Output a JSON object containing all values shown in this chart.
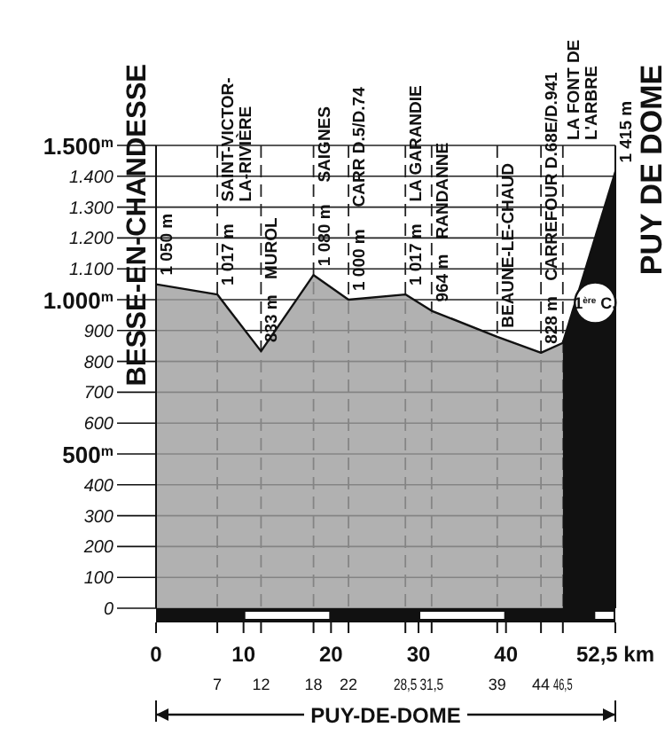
{
  "chart_data": {
    "type": "area",
    "xlabel": "PUY-DE-DOME",
    "series": [
      {
        "color": "#9e9e9e",
        "x": [
          0,
          7,
          12,
          18,
          22,
          28.5,
          31.5,
          39,
          44,
          46.5
        ],
        "values": [
          1050,
          1017,
          833,
          1080,
          1000,
          1017,
          964,
          880,
          828,
          860
        ]
      },
      {
        "color": "#111111",
        "x": [
          46.5,
          52.5
        ],
        "values": [
          860,
          1415
        ]
      }
    ],
    "xlim": [
      0,
      52.5
    ],
    "xticks": [
      0,
      10,
      20,
      30,
      40,
      {
        "value": 52.5,
        "label": "52,5 km"
      }
    ],
    "x2lim": [
      0,
      52.5
    ],
    "x2ticks": [
      7,
      12,
      18,
      22,
      {
        "value": 28.5,
        "label": "28,5"
      },
      {
        "value": 31.5,
        "label": "31,5"
      },
      39,
      44,
      {
        "value": 46.5,
        "label": "46,5"
      }
    ],
    "ylim": [
      0,
      1500
    ],
    "yticks": [
      0,
      100,
      200,
      300,
      400,
      {
        "value": 500,
        "label": "500$^{m}$"
      },
      600,
      700,
      800,
      900,
      {
        "value": 1000,
        "label": "1.000$^{m}$"
      },
      {
        "value": 1100,
        "label": "1.100"
      },
      {
        "value": 1200,
        "label": "1.200"
      },
      {
        "value": 1300,
        "label": "1.300"
      },
      {
        "value": 1400,
        "label": "1.400"
      },
      {
        "value": 1500,
        "label": "1.500$^{m}$"
      }
    ],
    "grid": true,
    "annotations": [
      "BESSE-EN-CHANDESSE",
      "PUY DE DOME",
      "1$^{ère}$ C.",
      {
        "text": "1 050 m",
        "x": 0,
        "y": 1050
      },
      {
        "text": "1 017 m",
        "x": 7,
        "y": 1017
      },
      "SAINT-VICTOR-LA-RIVIÈRE",
      {
        "text": "833 m",
        "x": 12,
        "y": 833
      },
      "MUROL",
      {
        "text": "1 080 m",
        "x": 18,
        "y": 1080
      },
      "SAIGNES",
      {
        "text": "1 000 m",
        "x": 22,
        "y": 1000
      },
      "CARR D.5/D.74",
      {
        "text": "1 017 m",
        "x": 28.5,
        "y": 1017
      },
      "LA GARANDIE",
      {
        "text": "964 m",
        "x": 31.5,
        "y": 964
      },
      "RANDANNE",
      {
        "text": "BEAUNE-LE-CHAUD",
        "x": 39,
        "y": 880
      },
      {
        "text": "828 m",
        "x": 44,
        "y": 828
      },
      "CARREFOUR D.68E/D.941",
      "LA FONT DE L'ARBRE",
      {
        "text": "1 415 m",
        "x": 52.5,
        "y": 1415
      }
    ]
  }
}
